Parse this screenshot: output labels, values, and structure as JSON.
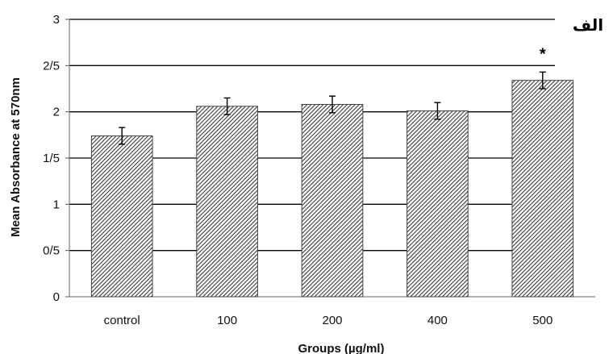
{
  "chart_data": {
    "type": "bar",
    "categories": [
      "control",
      "100",
      "200",
      "400",
      "500"
    ],
    "values": [
      1.74,
      2.06,
      2.08,
      2.01,
      2.34
    ],
    "errors": [
      0.09,
      0.09,
      0.09,
      0.09,
      0.09
    ],
    "significance": [
      "",
      "",
      "",
      "",
      "*"
    ],
    "ylim": [
      0,
      3
    ],
    "yticks": [
      {
        "value": 0,
        "label": "0"
      },
      {
        "value": 0.5,
        "label": "0/5"
      },
      {
        "value": 1,
        "label": "1"
      },
      {
        "value": 1.5,
        "label": "1/5"
      },
      {
        "value": 2,
        "label": "2"
      },
      {
        "value": 2.5,
        "label": "2/5"
      },
      {
        "value": 3,
        "label": "3"
      }
    ],
    "xlabel": "Groups (µg/ml)",
    "ylabel": "Mean Absorbance at 570nm",
    "panel_label": "الف",
    "grid": true,
    "bar_fill": "diagonal-hatch",
    "bar_color": "#555555"
  }
}
